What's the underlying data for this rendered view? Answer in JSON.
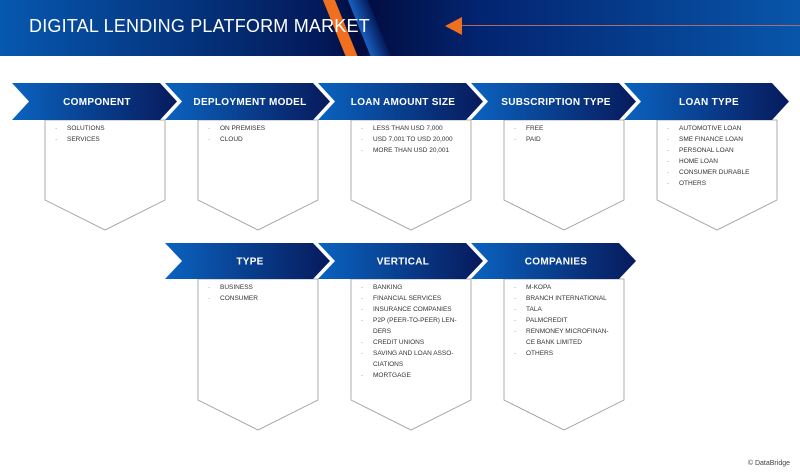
{
  "header": {
    "title": "DIGITAL LENDING PLATFORM MARKET",
    "colors": {
      "accent": "#f07020",
      "navy": "#031a5a",
      "blue": "#0758b0"
    }
  },
  "segments": [
    {
      "label": "COMPONENT",
      "items": [
        "SOLUTIONS",
        "SERVICES"
      ]
    },
    {
      "label": "DEPLOYMENT MODEL",
      "items": [
        "ON PREMISES",
        "CLOUD"
      ]
    },
    {
      "label": "LOAN AMOUNT SIZE",
      "items": [
        "LESS THAN USD 7,000",
        "USD 7,001 TO USD 20,000",
        "MORE THAN USD 20,001"
      ]
    },
    {
      "label": "SUBSCRIPTION TYPE",
      "items": [
        "FREE",
        "PAID"
      ]
    },
    {
      "label": "LOAN TYPE",
      "items": [
        "AUTOMOTIVE LOAN",
        "SME FINANCE LOAN",
        "PERSONAL LOAN",
        "HOME LOAN",
        "CONSUMER DURABLE",
        "OTHERS"
      ]
    },
    {
      "label": "TYPE",
      "items": [
        "BUSINESS",
        "CONSUMER"
      ]
    },
    {
      "label": "VERTICAL",
      "items": [
        "BANKING",
        "FINANCIAL SERVICES",
        "INSURANCE COMPANIES",
        "P2P (PEER-TO-PEER) LEN-|DERS",
        "CREDIT UNIONS",
        "SAVING AND LOAN ASSO-|CIATIONS",
        "MORTGAGE"
      ]
    },
    {
      "label": "COMPANIES",
      "items": [
        "M-KOPA",
        "BRANCH INTERNATIONAL",
        "TALA",
        "PALMCREDIT",
        "RENMONEY MICROFINAN-|CE BANK LIMITED",
        "OTHERS"
      ]
    }
  ],
  "footer": {
    "copyright": "© DataBridge"
  }
}
